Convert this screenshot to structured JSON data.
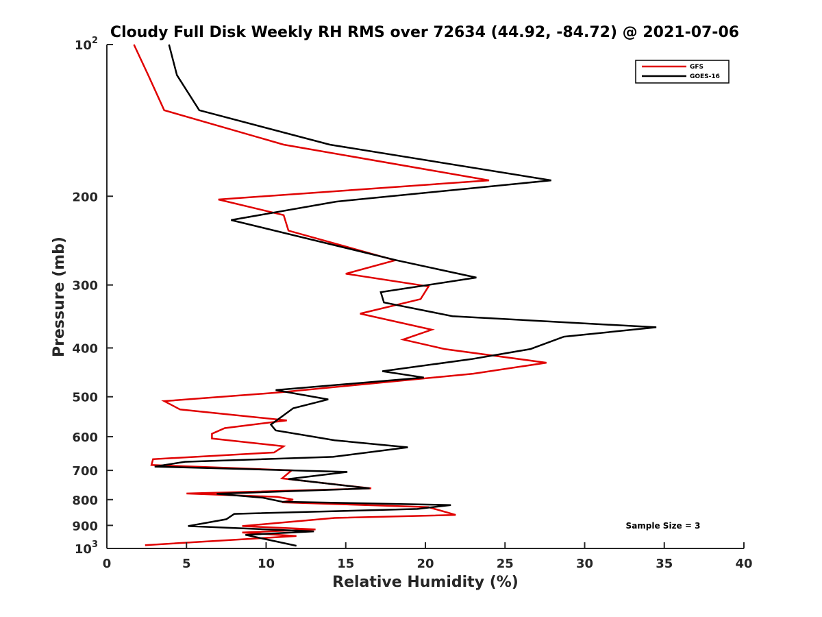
{
  "chart_data": {
    "type": "line",
    "title": "Cloudy Full Disk Weekly RH RMS over 72634 (44.92, -84.72) @ 2021-07-06",
    "xlabel": "Relative Humidity (%)",
    "ylabel": "Pressure (mb)",
    "xlim": [
      0,
      40
    ],
    "ylim": [
      100,
      1000
    ],
    "yscale": "log",
    "y_reversed": true,
    "grid": false,
    "legend_position": "top-right",
    "x_ticks": [
      0,
      5,
      10,
      15,
      20,
      25,
      30,
      35,
      40
    ],
    "x_tick_labels": [
      "0",
      "5",
      "10",
      "15",
      "20",
      "25",
      "30",
      "35",
      "40"
    ],
    "y_ticks": [
      100,
      200,
      300,
      400,
      500,
      600,
      700,
      800,
      900,
      1000
    ],
    "y_tick_labels": [
      {
        "base": "10",
        "exp": "2"
      },
      {
        "base": "200",
        "exp": ""
      },
      {
        "base": "300",
        "exp": ""
      },
      {
        "base": "400",
        "exp": ""
      },
      {
        "base": "500",
        "exp": ""
      },
      {
        "base": "600",
        "exp": ""
      },
      {
        "base": "700",
        "exp": ""
      },
      {
        "base": "800",
        "exp": ""
      },
      {
        "base": "900",
        "exp": ""
      },
      {
        "base": "10",
        "exp": "3"
      }
    ],
    "annotation": "Sample Size = 3",
    "series": [
      {
        "name": "GFS",
        "color": "#e00000",
        "points": [
          [
            1.7,
            100
          ],
          [
            2.6,
            115
          ],
          [
            3.6,
            135
          ],
          [
            11.1,
            158
          ],
          [
            24.0,
            186
          ],
          [
            7.0,
            203
          ],
          [
            11.1,
            218
          ],
          [
            11.4,
            234
          ],
          [
            18.1,
            268
          ],
          [
            15.0,
            285
          ],
          [
            20.2,
            302
          ],
          [
            19.7,
            320
          ],
          [
            15.9,
            342
          ],
          [
            20.4,
            368
          ],
          [
            18.6,
            385
          ],
          [
            21.2,
            402
          ],
          [
            27.6,
            428
          ],
          [
            23.0,
            450
          ],
          [
            10.9,
            490
          ],
          [
            3.6,
            510
          ],
          [
            4.6,
            530
          ],
          [
            11.3,
            557
          ],
          [
            7.4,
            577
          ],
          [
            6.6,
            592
          ],
          [
            6.6,
            605
          ],
          [
            11.1,
            627
          ],
          [
            10.5,
            645
          ],
          [
            2.9,
            665
          ],
          [
            2.8,
            683
          ],
          [
            11.6,
            700
          ],
          [
            11.0,
            726
          ],
          [
            16.6,
            760
          ],
          [
            5.0,
            778
          ],
          [
            10.7,
            790
          ],
          [
            11.7,
            800
          ],
          [
            11.0,
            810
          ],
          [
            20.2,
            828
          ],
          [
            21.9,
            858
          ],
          [
            14.3,
            870
          ],
          [
            11.8,
            884
          ],
          [
            8.5,
            903
          ],
          [
            13.1,
            917
          ],
          [
            8.5,
            930
          ],
          [
            11.9,
            945
          ],
          [
            2.4,
            985
          ]
        ]
      },
      {
        "name": "GOES-16",
        "color": "#000000",
        "points": [
          [
            3.9,
            100
          ],
          [
            4.4,
            115
          ],
          [
            5.8,
            135
          ],
          [
            14.0,
            158
          ],
          [
            27.9,
            186
          ],
          [
            14.4,
            205
          ],
          [
            7.8,
            223
          ],
          [
            18.2,
            268
          ],
          [
            23.2,
            290
          ],
          [
            17.2,
            310
          ],
          [
            17.4,
            325
          ],
          [
            21.7,
            346
          ],
          [
            34.5,
            364
          ],
          [
            28.7,
            380
          ],
          [
            26.6,
            402
          ],
          [
            22.9,
            421
          ],
          [
            17.3,
            445
          ],
          [
            19.9,
            458
          ],
          [
            10.6,
            485
          ],
          [
            13.9,
            506
          ],
          [
            11.7,
            527
          ],
          [
            10.3,
            568
          ],
          [
            10.6,
            583
          ],
          [
            14.3,
            610
          ],
          [
            18.9,
            630
          ],
          [
            14.2,
            658
          ],
          [
            4.9,
            673
          ],
          [
            3.0,
            688
          ],
          [
            15.1,
            705
          ],
          [
            11.4,
            728
          ],
          [
            16.5,
            760
          ],
          [
            6.9,
            779
          ],
          [
            9.8,
            793
          ],
          [
            11.0,
            808
          ],
          [
            21.6,
            820
          ],
          [
            19.5,
            835
          ],
          [
            8.0,
            854
          ],
          [
            7.5,
            875
          ],
          [
            5.1,
            903
          ],
          [
            13.0,
            925
          ],
          [
            8.7,
            940
          ],
          [
            11.9,
            988
          ]
        ]
      }
    ]
  }
}
